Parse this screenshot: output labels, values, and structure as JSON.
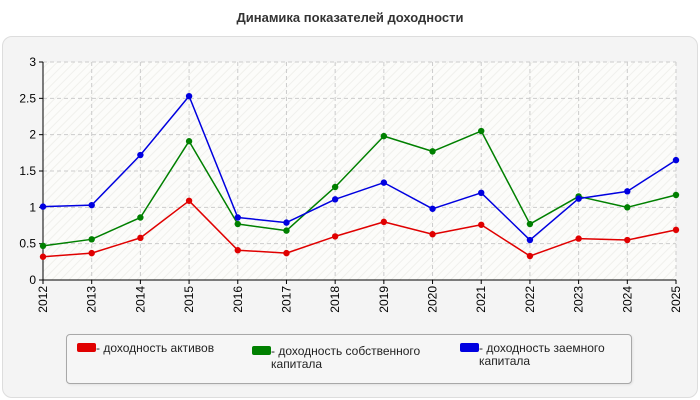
{
  "title": "Динамика показателей доходности",
  "colors": {
    "grid": "#cccccc",
    "axis": "#000000",
    "plot_bg": "#fcfcfa"
  },
  "chart_data": {
    "type": "line",
    "title": "Динамика показателей доходности",
    "xlabel": "",
    "ylabel": "",
    "ylim": [
      0,
      3
    ],
    "yticks": [
      "0",
      "0.5",
      "1",
      "1.5",
      "2",
      "2.5",
      "3"
    ],
    "x": [
      "2012",
      "2013",
      "2014",
      "2015",
      "2016",
      "2017",
      "2018",
      "2019",
      "2020",
      "2021",
      "2022",
      "2023",
      "2024",
      "2025"
    ],
    "grid": true,
    "legend_position": "bottom",
    "series": [
      {
        "name": "- доходность активов",
        "color": "#e00000",
        "values": [
          0.32,
          0.37,
          0.58,
          1.09,
          0.41,
          0.37,
          0.6,
          0.8,
          0.63,
          0.76,
          0.33,
          0.57,
          0.55,
          0.69
        ]
      },
      {
        "name": "- доходность собственного капитала",
        "color": "#008000",
        "values": [
          0.47,
          0.56,
          0.86,
          1.91,
          0.77,
          0.68,
          1.28,
          1.98,
          1.77,
          2.05,
          0.77,
          1.15,
          1.0,
          1.17
        ]
      },
      {
        "name": "- доходность заемного капитала",
        "color": "#0000e0",
        "values": [
          1.01,
          1.03,
          1.72,
          2.53,
          0.86,
          0.79,
          1.11,
          1.34,
          0.98,
          1.2,
          0.55,
          1.12,
          1.22,
          1.65
        ]
      }
    ]
  }
}
